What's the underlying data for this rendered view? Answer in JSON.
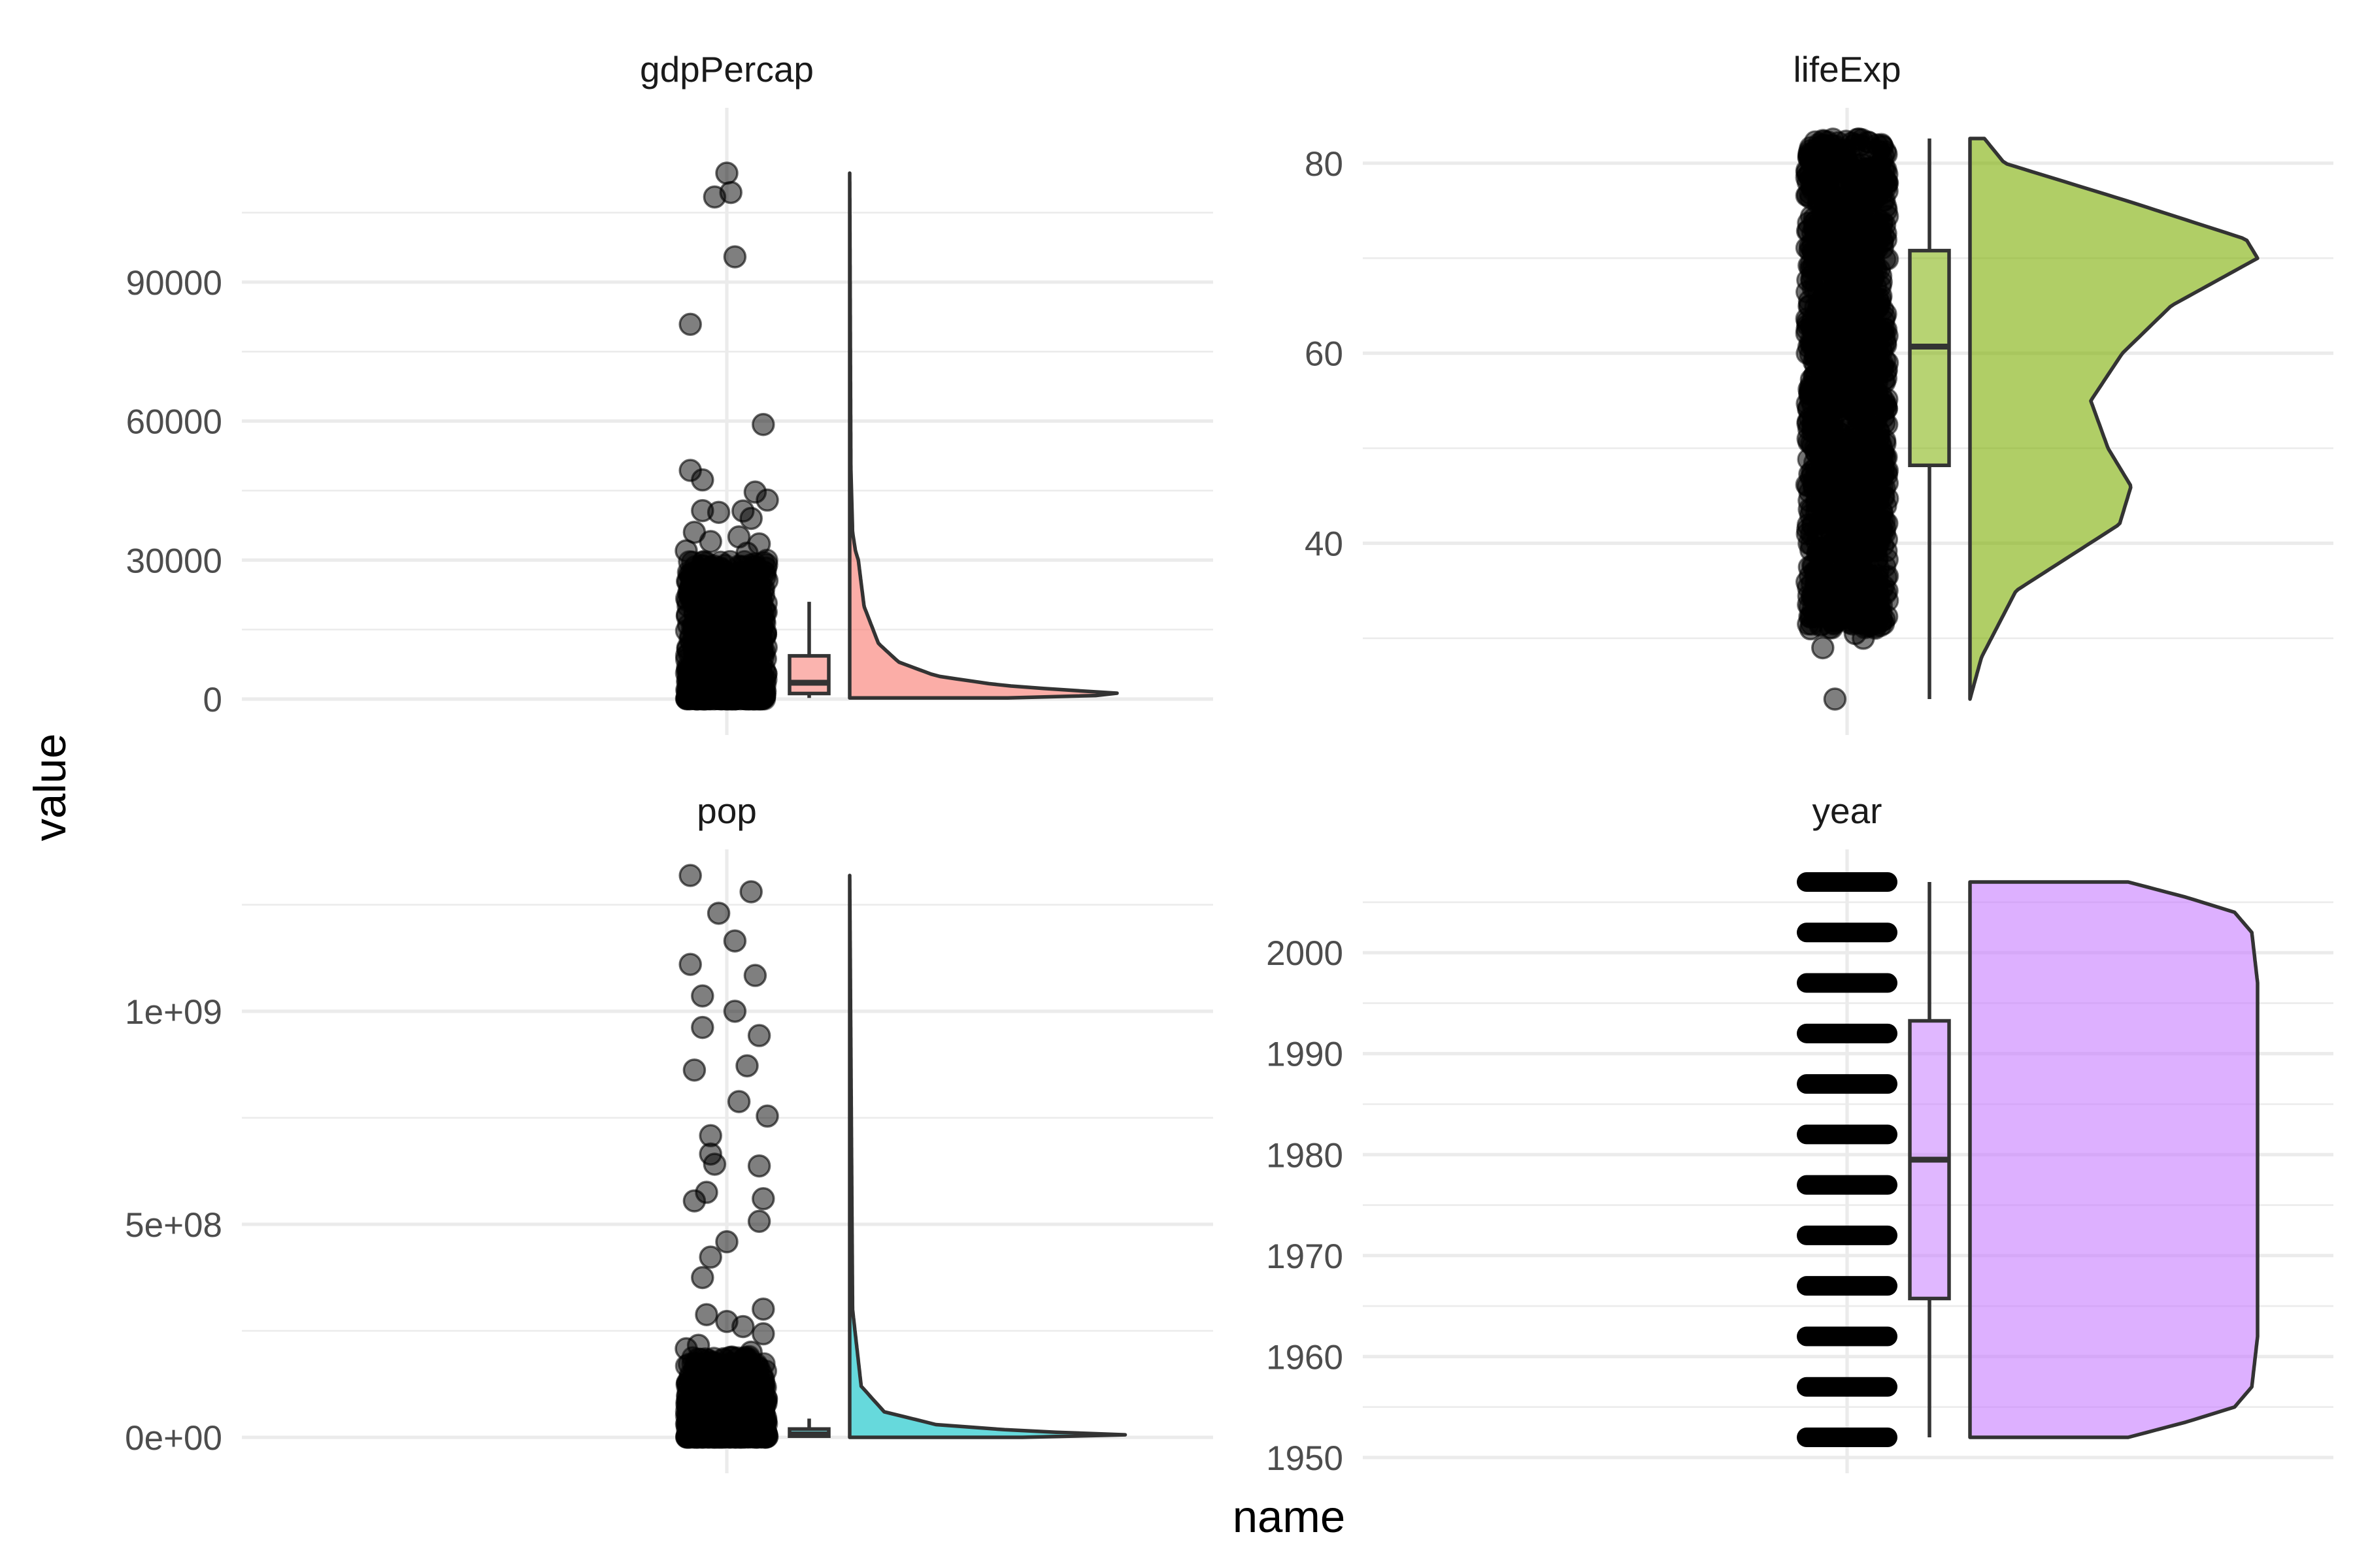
{
  "chart_data": {
    "type": "raincloud",
    "xlabel": "name",
    "ylabel": "value",
    "grid": true,
    "legend": "none",
    "point_color": "#000000",
    "panels": [
      {
        "name": "gdpPercap",
        "fill": "#F8766D",
        "ylim": [
          0,
          113523
        ],
        "ticks": [
          0,
          30000,
          60000,
          90000
        ],
        "tick_labels": [
          "0",
          "30000",
          "60000",
          "90000"
        ],
        "box": {
          "whisker_low": 241,
          "q1": 1202,
          "median": 3532,
          "q3": 9325,
          "whisker_high": 21000
        },
        "density": [
          [
            241,
            0.55
          ],
          [
            1000,
            1.0
          ],
          [
            2000,
            0.74
          ],
          [
            3000,
            0.52
          ],
          [
            5000,
            0.3
          ],
          [
            8000,
            0.17
          ],
          [
            12000,
            0.1
          ],
          [
            20000,
            0.05
          ],
          [
            30000,
            0.03
          ],
          [
            32000,
            0.02
          ],
          [
            36000,
            0.01
          ],
          [
            50000,
            0.004
          ],
          [
            113523,
            0.0
          ]
        ],
        "points": [
          [
            0.0,
            113523
          ],
          [
            -0.3,
            108382
          ],
          [
            0.1,
            109348
          ],
          [
            0.2,
            95458
          ],
          [
            -0.9,
            80894
          ],
          [
            0.9,
            59265
          ],
          [
            -0.9,
            49357
          ],
          [
            -0.6,
            47306
          ],
          [
            0.7,
            44684
          ],
          [
            1.0,
            42952
          ],
          [
            -0.6,
            40676
          ],
          [
            -0.2,
            40300
          ],
          [
            0.4,
            40600
          ],
          [
            0.6,
            39000
          ],
          [
            -0.8,
            36000
          ],
          [
            0.3,
            35000
          ],
          [
            -0.4,
            34000
          ],
          [
            0.8,
            33500
          ],
          [
            -1.0,
            32000
          ],
          [
            0.5,
            31500
          ]
        ],
        "cloud_max": 30000
      },
      {
        "name": "lifeExp",
        "fill": "#7CAE00",
        "ylim": [
          23.6,
          82.6
        ],
        "ticks": [
          40,
          60,
          80
        ],
        "tick_labels": [
          "40",
          "60",
          "80"
        ],
        "box": {
          "whisker_low": 23.6,
          "q1": 48.2,
          "median": 60.7,
          "q3": 70.8,
          "whisker_high": 82.6
        },
        "density": [
          [
            23.6,
            0.0
          ],
          [
            28,
            0.04
          ],
          [
            35,
            0.16
          ],
          [
            42,
            0.52
          ],
          [
            46,
            0.56
          ],
          [
            50,
            0.48
          ],
          [
            55,
            0.42
          ],
          [
            60,
            0.53
          ],
          [
            65,
            0.7
          ],
          [
            70,
            1.0
          ],
          [
            72,
            0.96
          ],
          [
            76,
            0.55
          ],
          [
            80,
            0.12
          ],
          [
            82.6,
            0.05
          ]
        ],
        "points": [
          [
            -0.3,
            23.6
          ],
          [
            -0.6,
            29
          ],
          [
            0.4,
            30
          ],
          [
            -0.9,
            31
          ],
          [
            0.7,
            31.5
          ],
          [
            0.2,
            30.5
          ]
        ],
        "cloud_range": [
          31,
          82.6
        ]
      },
      {
        "name": "pop",
        "fill": "#00BFC4",
        "ylim": [
          60011,
          1318683096
        ],
        "ticks": [
          0,
          500000000,
          1000000000
        ],
        "tick_labels": [
          "0e+00",
          "5e+08",
          "1e+09"
        ],
        "box": {
          "whisker_low": 60011,
          "q1": 2793664,
          "median": 7023596,
          "q3": 19585222,
          "whisker_high": 44000000
        },
        "density": [
          [
            60011,
            0.6
          ],
          [
            5000000,
            1.0
          ],
          [
            15000000,
            0.6
          ],
          [
            30000000,
            0.3
          ],
          [
            60000000,
            0.12
          ],
          [
            120000000,
            0.04
          ],
          [
            300000000,
            0.01
          ],
          [
            1318683096,
            0.0
          ]
        ],
        "points": [
          [
            -0.9,
            1318683096
          ],
          [
            0.6,
            1280400000
          ],
          [
            -0.2,
            1230000000
          ],
          [
            0.2,
            1165000000
          ],
          [
            -0.9,
            1110000000
          ],
          [
            0.7,
            1084000000
          ],
          [
            -0.6,
            1036000000
          ],
          [
            0.2,
            1000000000
          ],
          [
            -0.6,
            962000000
          ],
          [
            0.8,
            943000000
          ],
          [
            -0.8,
            862000000
          ],
          [
            0.5,
            872000000
          ],
          [
            0.3,
            788000000
          ],
          [
            1.0,
            754000000
          ],
          [
            -0.4,
            708000000
          ],
          [
            -0.4,
            665000000
          ],
          [
            -0.3,
            641000000
          ],
          [
            0.8,
            637000000
          ],
          [
            -0.5,
            575000000
          ],
          [
            0.9,
            560000000
          ],
          [
            -0.8,
            555000000
          ],
          [
            0.8,
            507000000
          ],
          [
            0.0,
            459000000
          ],
          [
            -0.4,
            423000000
          ],
          [
            -0.6,
            375000000
          ],
          [
            0.9,
            301000000
          ],
          [
            -0.5,
            288000000
          ],
          [
            0.0,
            272000000
          ],
          [
            0.4,
            260000000
          ],
          [
            0.9,
            243000000
          ],
          [
            -1.0,
            208000000
          ],
          [
            -0.7,
            216000000
          ],
          [
            0.6,
            200000000
          ]
        ],
        "cloud_max": 190000000
      },
      {
        "name": "year",
        "fill": "#C77CFF",
        "ylim": [
          1952,
          2007
        ],
        "ticks": [
          1950,
          1960,
          1970,
          1980,
          1990,
          2000
        ],
        "tick_labels": [
          "1950",
          "1960",
          "1970",
          "1980",
          "1990",
          "2000"
        ],
        "box": {
          "whisker_low": 1952,
          "q1": 1965.75,
          "median": 1979.5,
          "q3": 1993.25,
          "whisker_high": 2007
        },
        "years": [
          1952,
          1957,
          1962,
          1967,
          1972,
          1977,
          1982,
          1987,
          1992,
          1997,
          2002,
          2007
        ],
        "density": [
          [
            1952,
            0.55
          ],
          [
            1953.5,
            0.75
          ],
          [
            1955,
            0.92
          ],
          [
            1957,
            0.98
          ],
          [
            1962,
            1.0
          ],
          [
            1997,
            1.0
          ],
          [
            2002,
            0.98
          ],
          [
            2004,
            0.92
          ],
          [
            2005.5,
            0.75
          ],
          [
            2007,
            0.55
          ]
        ]
      }
    ]
  }
}
